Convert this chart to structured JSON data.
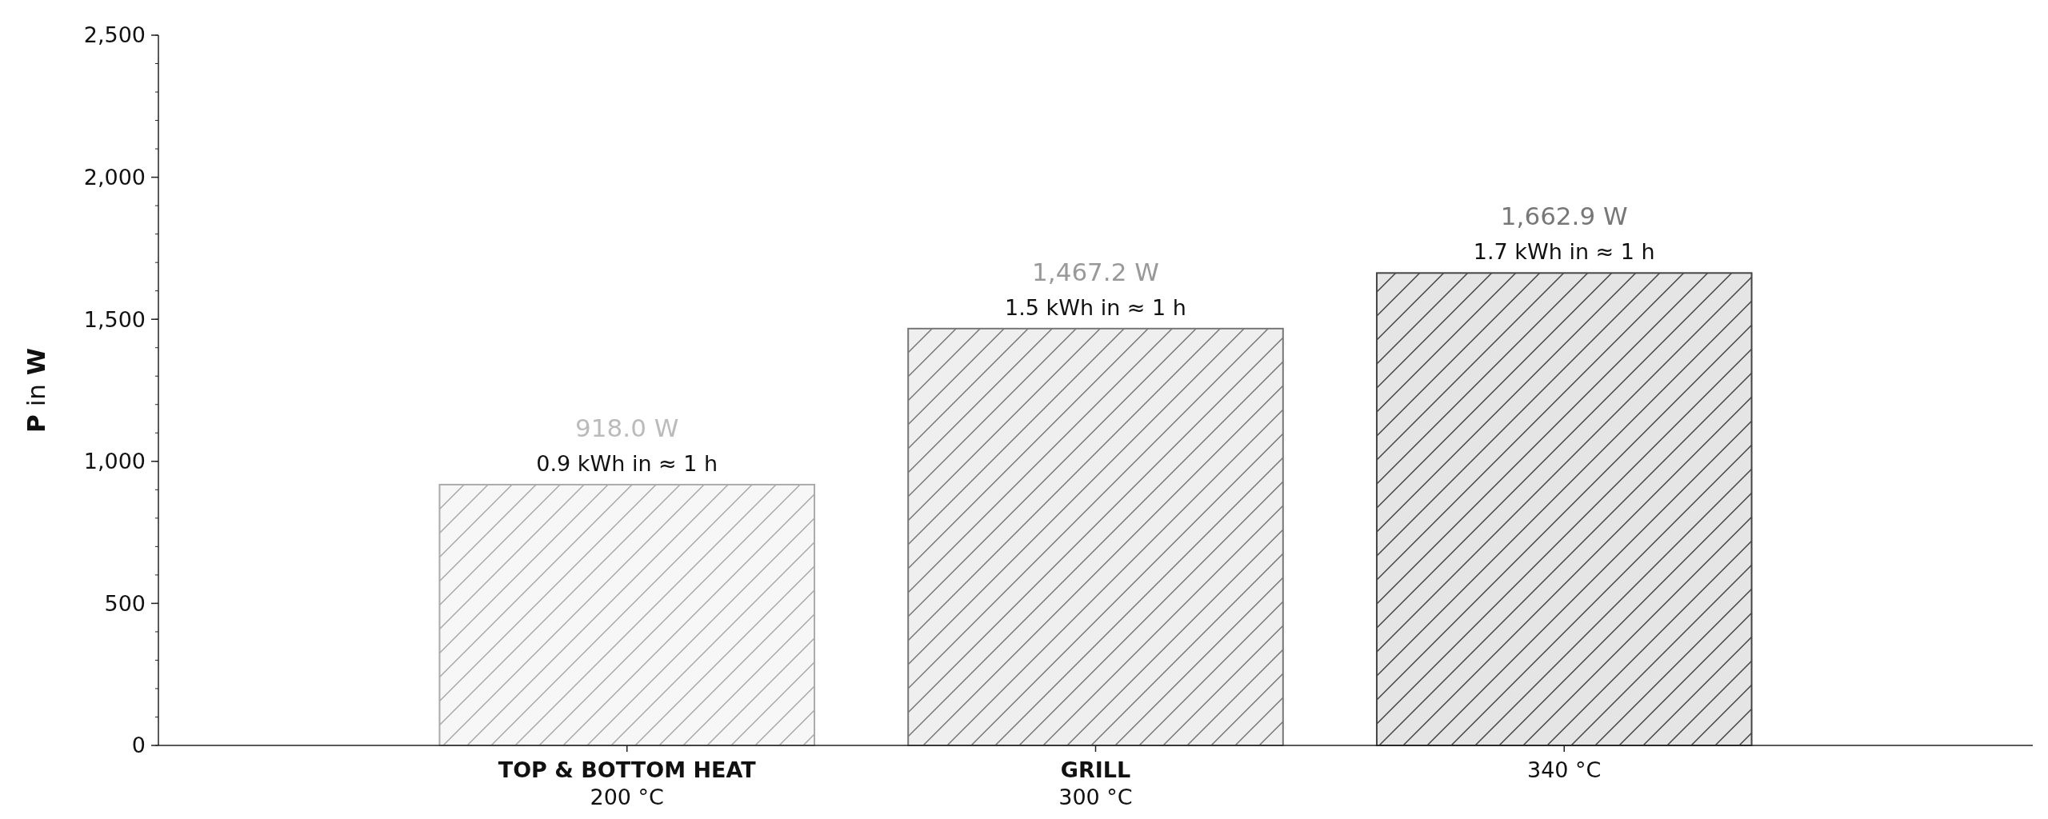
{
  "chart_data": {
    "type": "bar",
    "ylabel": "P in W",
    "categories": [
      "TOP & BOTTOM HEAT\n200 °C",
      "GRILL\n300 °C",
      "340 °C"
    ],
    "values": [
      918.0,
      1467.2,
      1662.9
    ],
    "colors": [
      "#f7f7f7",
      "#efefef",
      "#e5e5e5"
    ],
    "value_labels": [
      "918.0 W",
      "1,467.2 W",
      "1,662.9 W"
    ],
    "annotations": [
      "0.9 kWh in ≈ 1 h",
      "1.5 kWh in ≈ 1 h",
      "1.7 kWh in ≈ 1 h"
    ],
    "ylim": [
      0,
      2500
    ],
    "yticks": [
      {
        "value": 0,
        "label": "0"
      },
      {
        "value": 500,
        "label": "500"
      },
      {
        "value": 1000,
        "label": "1,000"
      },
      {
        "value": 1500,
        "label": "1,500"
      },
      {
        "value": 2000,
        "label": "2,000"
      },
      {
        "value": 2500,
        "label": "2,500"
      }
    ],
    "grid": false
  }
}
